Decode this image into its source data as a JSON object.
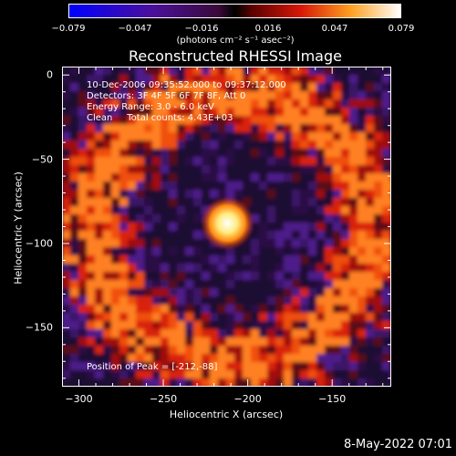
{
  "colorbar": {
    "ticks": [
      "-0.079",
      "-0.047",
      "-0.016",
      "0.016",
      "0.047",
      "0.079"
    ],
    "unit": "(photons cm⁻² s⁻¹ asec⁻²)"
  },
  "chart_data": {
    "type": "heatmap",
    "title": "Reconstructed RHESSI Image",
    "xlabel": "Heliocentric X (arcsec)",
    "ylabel": "Heliocentric Y (arcsec)",
    "xlim": [
      -310,
      -115
    ],
    "ylim": [
      -185,
      5
    ],
    "xticks": [
      -300,
      -250,
      -200,
      -150
    ],
    "yticks": [
      0,
      -50,
      -100,
      -150
    ],
    "xtick_labels": [
      "−300",
      "−250",
      "−200",
      "−150"
    ],
    "ytick_labels": [
      "0",
      "−50",
      "−100",
      "−150"
    ],
    "colorbar_range": [
      -0.079,
      0.079
    ],
    "peak": {
      "x": -212,
      "y": -88
    },
    "annotations": [
      "10-Dec-2006 09:35:52.000 to 09:37:12.000",
      "Detectors: 3F 4F 5F 6F 7F 8F, Att 0",
      "Energy Range: 3.0 - 6.0 keV",
      "Clean     Total counts: 4.43E+03"
    ],
    "peak_label": "Position of Peak = [-212,-88]"
  },
  "timestamp": "8-May-2022 07:01"
}
